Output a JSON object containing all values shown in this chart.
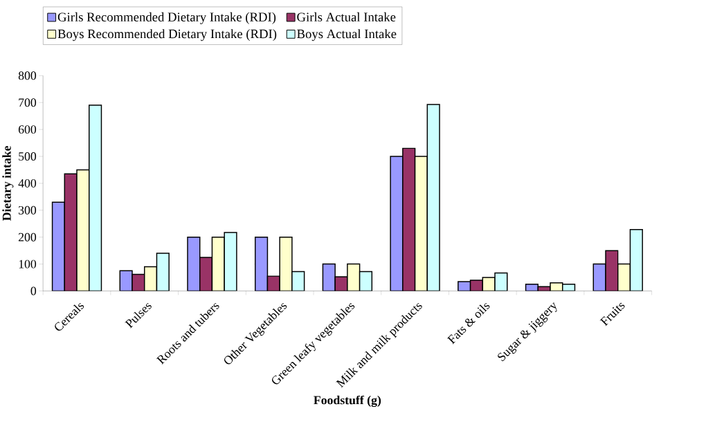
{
  "chart_data": {
    "type": "bar",
    "xlabel": "Foodstuff (g)",
    "ylabel": "Dietary intake",
    "categories": [
      "Cereals",
      "Pulses",
      "Roots and tubers",
      "Other Vegetables",
      "Green leafy vegetables",
      "Milk and milk products",
      "Fats & oils",
      "Sugar & jiggery",
      "Fruits"
    ],
    "series": [
      {
        "name": "Girls  Recommended Dietary Intake (RDI)",
        "color": "#9999ff",
        "values": [
          330,
          75,
          200,
          200,
          100,
          500,
          35,
          25,
          100
        ]
      },
      {
        "name": "Girls  Actual Intake",
        "color": "#993366",
        "values": [
          435,
          62,
          125,
          55,
          53,
          530,
          40,
          16,
          150
        ]
      },
      {
        "name": "Boys  Recommended Dietary Intake (RDI)",
        "color": "#ffffcc",
        "values": [
          450,
          90,
          200,
          200,
          100,
          500,
          50,
          30,
          100
        ]
      },
      {
        "name": "Boys  Actual Intake",
        "color": "#ccffff",
        "values": [
          690,
          140,
          217,
          72,
          72,
          693,
          67,
          25,
          228
        ]
      }
    ],
    "ylim": [
      0,
      800
    ],
    "yticks": [
      0,
      100,
      200,
      300,
      400,
      500,
      600,
      700,
      800
    ],
    "grid": false,
    "legend": "top"
  }
}
